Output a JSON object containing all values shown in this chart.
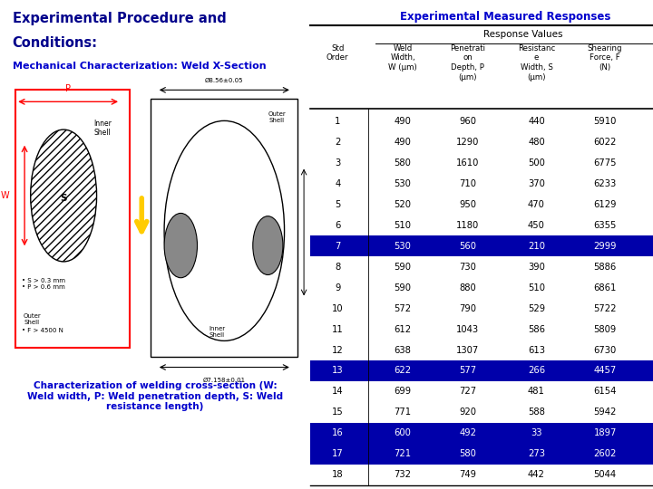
{
  "title_line1": "Experimental Procedure and",
  "title_line2": "Conditions:",
  "subtitle": "Mechanical Characterization: Weld X-Section",
  "table_title": "Experimental Measured Responses",
  "response_values_label": "Response Values",
  "rows": [
    [
      1,
      490,
      960,
      440,
      5910
    ],
    [
      2,
      490,
      1290,
      480,
      6022
    ],
    [
      3,
      580,
      1610,
      500,
      6775
    ],
    [
      4,
      530,
      710,
      370,
      6233
    ],
    [
      5,
      520,
      950,
      470,
      6129
    ],
    [
      6,
      510,
      1180,
      450,
      6355
    ],
    [
      7,
      530,
      560,
      210,
      2999
    ],
    [
      8,
      590,
      730,
      390,
      5886
    ],
    [
      9,
      590,
      880,
      510,
      6861
    ],
    [
      10,
      572,
      790,
      529,
      5722
    ],
    [
      11,
      612,
      1043,
      586,
      5809
    ],
    [
      12,
      638,
      1307,
      613,
      6730
    ],
    [
      13,
      622,
      577,
      266,
      4457
    ],
    [
      14,
      699,
      727,
      481,
      6154
    ],
    [
      15,
      771,
      920,
      588,
      5942
    ],
    [
      16,
      600,
      492,
      33,
      1897
    ],
    [
      17,
      721,
      580,
      273,
      2602
    ],
    [
      18,
      732,
      749,
      442,
      5044
    ]
  ],
  "highlighted_rows": [
    7,
    13,
    16,
    17
  ],
  "highlight_color": "#0000AA",
  "highlight_text_color": "#FFFFFF",
  "normal_text_color": "#000000",
  "title_color": "#00008B",
  "subtitle_color": "#0000CC",
  "table_title_color": "#0000CC",
  "caption_text": "Characterization of welding cross-section (W:\nWeld width, P: Weld penetration depth, S: Weld\nresistance length)",
  "caption_color": "#0000CC",
  "bg_color": "#FFFFFF",
  "col_header_texts": [
    "Std\nOrder",
    "Weld\nWidth,\nW (μm)",
    "Penetrati\non\nDepth, P\n(μm)",
    "Resistanc\ne\nWidth, S\n(μm)",
    "Shearing\nForce, F\n(N)"
  ]
}
